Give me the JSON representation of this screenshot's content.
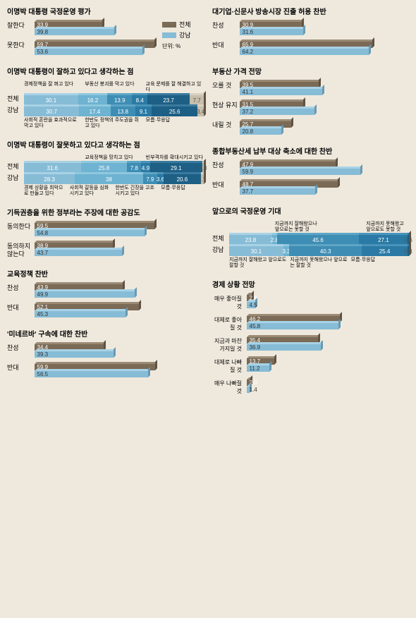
{
  "max_bar_pct": 70,
  "legend": {
    "a_label": "전체",
    "b_label": "강남",
    "unit": "단위: %"
  },
  "colors": {
    "brown": "#7a6a56",
    "brown_top": "#9a8a74",
    "brown_side": "#5f5243",
    "blue": "#87bcd6",
    "blue_top": "#a8d2e6",
    "blue_side": "#6999b2",
    "seg": [
      "#87bcd6",
      "#6eb3d1",
      "#3e8db4",
      "#2a7aa5",
      "#1d5f85",
      "#c7beab"
    ],
    "seg_top": [
      "#a8d2e6",
      "#8fc8df",
      "#5ea5c6",
      "#4a94bb",
      "#3b7a9f",
      "#d9d1c1"
    ],
    "bg": "#efe9dd"
  },
  "left_sections": [
    {
      "title": "이명박 대통령 국정운영 평가",
      "type": "pair",
      "items": [
        {
          "label": "잘한다",
          "a": 33.9,
          "b": 39.8
        },
        {
          "label": "못한다",
          "a": 59.7,
          "b": 53.6
        }
      ]
    },
    {
      "title": "이명박 대통령이 잘하고 있다고 생각하는 점",
      "type": "stacked",
      "top_labels": [
        "경제정책을 잘 펴고 있다",
        "부동산 붕괴를 막고 있다",
        "교육 문제를 잘 해결하고 있다"
      ],
      "rows": [
        {
          "label": "전체",
          "vals": [
            30.1,
            16.2,
            13.9,
            8.4,
            23.7,
            7.7
          ]
        },
        {
          "label": "강남",
          "vals": [
            30.7,
            17.4,
            13.8,
            9.1,
            25.6,
            3.4
          ]
        }
      ],
      "bottom_labels": [
        "사회적 혼란을 효과적으로 막고 있다",
        "한반도 정책의 주도권을 쥐고 있다",
        "모름·무응답"
      ]
    },
    {
      "title": "이명박 대통령이 잘못하고 있다고 생각하는 점",
      "type": "stacked",
      "top_labels": [
        "",
        "교육정책을 망치고 있다",
        "빈부격차를 확대시키고 있다"
      ],
      "rows": [
        {
          "label": "전체",
          "vals": [
            31.6,
            25.8,
            7.8,
            4.9,
            29.1,
            0.8
          ]
        },
        {
          "label": "강남",
          "vals": [
            28.3,
            38.0,
            7.9,
            3.6,
            20.6,
            1.7
          ]
        }
      ],
      "bottom_labels": [
        "경제 상황을 최악으로 만들고 있다",
        "사회적 갈등을 심화시키고 있다",
        "한반도 긴장을 고조시키고 있다",
        "모름·무응답"
      ]
    },
    {
      "title": "기득권층을 위한 정부라는 주장에 대한 공감도",
      "type": "pair",
      "items": [
        {
          "label": "동의한다",
          "a": 59.5,
          "b": 54.8
        },
        {
          "label": "동의하지 않는다",
          "a": 38.9,
          "b": 43.7
        }
      ]
    },
    {
      "title": "교육정책 찬반",
      "type": "pair",
      "items": [
        {
          "label": "찬성",
          "a": 43.9,
          "b": 49.9
        },
        {
          "label": "반대",
          "a": 52.1,
          "b": 45.3
        }
      ]
    },
    {
      "title": "'미네르바' 구속에 대한 찬반",
      "type": "pair",
      "items": [
        {
          "label": "찬성",
          "a": 34.4,
          "b": 39.3
        },
        {
          "label": "반대",
          "a": 59.9,
          "b": 56.5
        }
      ]
    }
  ],
  "right_sections": [
    {
      "title": "대기업·신문사 방송시장 진출 허용 찬반",
      "type": "pair",
      "items": [
        {
          "label": "찬성",
          "a": 30.9,
          "b": 31.6
        },
        {
          "label": "반대",
          "a": 65.9,
          "b": 64.2
        }
      ]
    },
    {
      "title": "부동산 가격 전망",
      "type": "pair",
      "items": [
        {
          "label": "오를 것",
          "a": 39.5,
          "b": 41.1
        },
        {
          "label": "현상 유지",
          "a": 31.5,
          "b": 37.2
        },
        {
          "label": "내릴 것",
          "a": 25.7,
          "b": 20.8
        }
      ]
    },
    {
      "title": "종합부동산세 납부 대상 축소에 대한 찬반",
      "type": "pair",
      "items": [
        {
          "label": "찬성",
          "a": 47.9,
          "b": 59.9
        },
        {
          "label": "반대",
          "a": 48.7,
          "b": 37.7
        }
      ]
    },
    {
      "title": "앞으로의 국정운영 기대",
      "type": "stacked",
      "top_labels": [
        "",
        "지금까지 잘해왔으나 앞으로는 못할 것",
        "",
        "지금까지 못해왔고 앞으로도 못할 것"
      ],
      "rows": [
        {
          "label": "전체",
          "vals": [
            23.8,
            2.8,
            45.6,
            27.1,
            0.6
          ]
        },
        {
          "label": "강남",
          "vals": [
            30.1,
            3.3,
            40.3,
            25.4,
            0.8
          ]
        }
      ],
      "bottom_labels": [
        "지금까지 잘해왔고 앞으로도 잘할 것",
        "지금까지 못해왔으나 앞으로는 잘할 것",
        "모름·무응답"
      ]
    },
    {
      "title": "경제 상황 전망",
      "type": "pair",
      "narrow": true,
      "items": [
        {
          "label": "매우 좋아질 것",
          "a": 2.6,
          "b": 4.5
        },
        {
          "label": "대체로 좋아질 것",
          "a": 46.2,
          "b": 45.8
        },
        {
          "label": "지금과 마찬가지일 것",
          "a": 35.4,
          "b": 36.9
        },
        {
          "label": "대체로 나빠질 것",
          "a": 13.7,
          "b": 11.2
        },
        {
          "label": "매우 나빠질 것",
          "a": 2.0,
          "b": 1.4
        }
      ]
    }
  ]
}
